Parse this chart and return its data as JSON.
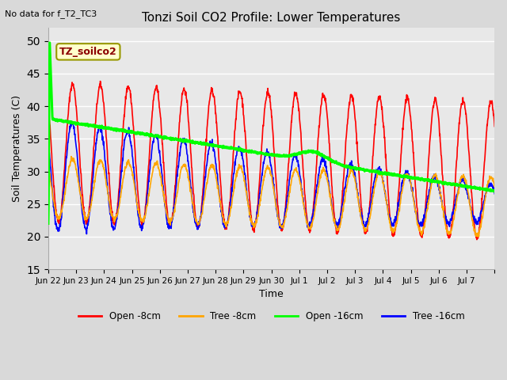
{
  "title": "Tonzi Soil CO2 Profile: Lower Temperatures",
  "subtitle": "No data for f_T2_TC3",
  "xlabel": "Time",
  "ylabel": "Soil Temperatures (C)",
  "ylim": [
    15,
    52
  ],
  "yticks": [
    15,
    20,
    25,
    30,
    35,
    40,
    45,
    50
  ],
  "fig_bg_color": "#d9d9d9",
  "plot_bg_color": "#e8e8e8",
  "legend_labels": [
    "Open -8cm",
    "Tree -8cm",
    "Open -16cm",
    "Tree -16cm"
  ],
  "legend_colors": [
    "red",
    "orange",
    "green",
    "blue"
  ],
  "annotation_text": "TZ_soilco2",
  "xtick_labels": [
    "Jun 22",
    "Jun 23",
    "Jun 24",
    "Jun 25",
    "Jun 26",
    "Jun 27",
    "Jun 28",
    "Jun 29",
    "Jun 30",
    "Jul 1",
    "Jul 2",
    "Jul 3",
    "Jul 4",
    "Jul 5",
    "Jul 6",
    "Jul 7"
  ],
  "n_days": 16
}
